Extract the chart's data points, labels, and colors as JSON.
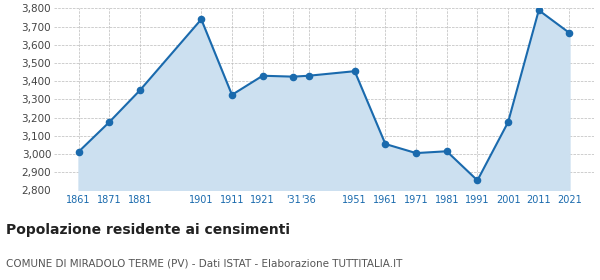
{
  "years": [
    1861,
    1871,
    1881,
    1901,
    1911,
    1921,
    1931,
    1936,
    1951,
    1961,
    1971,
    1981,
    1991,
    2001,
    2011,
    2021
  ],
  "values": [
    3012,
    3175,
    3350,
    3740,
    3325,
    3430,
    3425,
    3430,
    3455,
    3055,
    3005,
    3015,
    2855,
    3175,
    3790,
    3665
  ],
  "x_tick_positions": [
    1861,
    1871,
    1881,
    1901,
    1911,
    1921,
    1931,
    1936,
    1951,
    1961,
    1971,
    1981,
    1991,
    2001,
    2011,
    2021
  ],
  "x_tick_labels": [
    "1861",
    "1871",
    "1881",
    "1901",
    "1911",
    "1921",
    "'31",
    "'36",
    "1951",
    "1961",
    "1971",
    "1981",
    "1991",
    "2001",
    "2011",
    "2021"
  ],
  "line_color": "#1a6aad",
  "fill_color": "#cce0f0",
  "marker_color": "#1a6aad",
  "grid_color": "#bbbbbb",
  "bg_color": "#ffffff",
  "title": "Popolazione residente ai censimenti",
  "subtitle": "COMUNE DI MIRADOLO TERME (PV) - Dati ISTAT - Elaborazione TUTTITALIA.IT",
  "ylim": [
    2800,
    3800
  ],
  "yticks": [
    2800,
    2900,
    3000,
    3100,
    3200,
    3300,
    3400,
    3500,
    3600,
    3700,
    3800
  ],
  "xlim": [
    1853,
    2029
  ],
  "title_fontsize": 10,
  "subtitle_fontsize": 7.5,
  "xtick_fontsize": 7,
  "ytick_fontsize": 7.5
}
